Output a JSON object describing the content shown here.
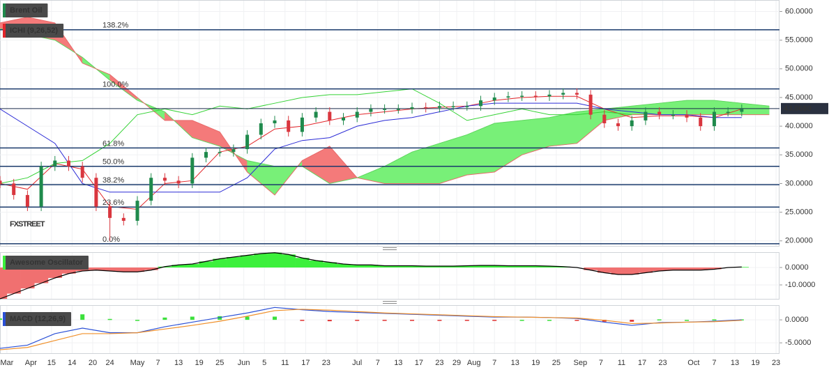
{
  "chart_data": [
    {
      "type": "candlestick",
      "title": "Brent Oil",
      "subtitle": "ICHI (9,26,52)",
      "watermark": "FXSTREET",
      "xlim": [
        0,
        227
      ],
      "xticks": [
        {
          "value": 2,
          "label": "Mar"
        },
        {
          "value": 9,
          "label": "Apr"
        },
        15,
        {
          "value": 21,
          "label": "14"
        },
        {
          "value": 27,
          "label": "20"
        },
        {
          "value": 32,
          "label": "24"
        },
        {
          "value": 40,
          "label": "May"
        },
        {
          "value": 46,
          "label": "7"
        },
        {
          "value": 52,
          "label": "13"
        },
        {
          "value": 58,
          "label": "19"
        },
        {
          "value": 64,
          "label": "25"
        },
        {
          "value": 71,
          "label": "Jun"
        },
        {
          "value": 77,
          "label": "5"
        },
        {
          "value": 83,
          "label": "11"
        },
        {
          "value": 89,
          "label": "17"
        },
        {
          "value": 95,
          "label": "23"
        },
        {
          "value": 104,
          "label": "Jul"
        },
        {
          "value": 110,
          "label": "7"
        },
        {
          "value": 116,
          "label": "13"
        },
        {
          "value": 122,
          "label": "17"
        },
        {
          "value": 128,
          "label": "23"
        },
        {
          "value": 133,
          "label": "29"
        },
        {
          "value": 138,
          "label": "Aug"
        },
        {
          "value": 144,
          "label": "7"
        },
        {
          "value": 150,
          "label": "13"
        },
        {
          "value": 156,
          "label": "19"
        },
        {
          "value": 162,
          "label": "25"
        },
        {
          "value": 169,
          "label": "Sep"
        },
        {
          "value": 175,
          "label": "7"
        },
        {
          "value": 181,
          "label": "11"
        },
        {
          "value": 187,
          "label": "17"
        },
        {
          "value": 193,
          "label": "23"
        },
        {
          "value": 202,
          "label": "Oct"
        },
        {
          "value": 208,
          "label": "7"
        },
        {
          "value": 214,
          "label": "13"
        },
        {
          "value": 220,
          "label": "19"
        },
        {
          "value": 226,
          "label": "23"
        }
      ],
      "ylim": [
        19,
        62
      ],
      "yticks": [
        {
          "value": 20,
          "label": "20.0000"
        },
        {
          "value": 25,
          "label": "25.0000"
        },
        {
          "value": 30,
          "label": "30.0000"
        },
        {
          "value": 35,
          "label": "35.0000"
        },
        {
          "value": 40,
          "label": "40.0000"
        },
        {
          "value": 45,
          "label": "45.0000"
        },
        {
          "value": 50,
          "label": "50.0000"
        },
        {
          "value": 55,
          "label": "55.0000"
        },
        {
          "value": 60,
          "label": "60.0000"
        }
      ],
      "up_color": "#1f8a4c",
      "down_color": "#d9363e",
      "x": [
        0,
        4,
        8,
        12,
        16,
        20,
        24,
        28,
        32,
        36,
        40,
        44,
        48,
        52,
        56,
        60,
        64,
        68,
        72,
        76,
        80,
        84,
        88,
        92,
        96,
        100,
        104,
        108,
        112,
        116,
        120,
        124,
        128,
        132,
        136,
        140,
        144,
        148,
        152,
        156,
        160,
        164,
        168,
        172,
        176,
        180,
        184,
        188,
        192,
        196,
        200,
        204,
        208,
        212,
        216
      ],
      "open": [
        30.5,
        30,
        28,
        26,
        33,
        34,
        33,
        31,
        26,
        24,
        23.5,
        27,
        31,
        30.5,
        30,
        34.5,
        35.5,
        35.5,
        36,
        38.5,
        40.5,
        41,
        39,
        41.5,
        42.5,
        41,
        41.5,
        42.5,
        43,
        43,
        43,
        43.3,
        43.2,
        43.5,
        43.5,
        43.5,
        44.5,
        45,
        45.2,
        45.3,
        45.2,
        45.5,
        45.8,
        45.5,
        42,
        40.5,
        40,
        41,
        42.5,
        42,
        42,
        41.5,
        40,
        42.5,
        42.5
      ],
      "high": [
        31.3,
        30.8,
        28.8,
        33.8,
        34.8,
        34.8,
        33.8,
        31.8,
        26.8,
        24.8,
        27.8,
        31.8,
        31.8,
        31.3,
        35.3,
        36.3,
        36.3,
        36.8,
        39.3,
        41.3,
        41.8,
        41.8,
        42.3,
        43.3,
        43.3,
        42.3,
        43.3,
        43.8,
        43.8,
        43.8,
        44.1,
        44.1,
        44.3,
        44.3,
        44.3,
        45.3,
        45.8,
        46,
        46.1,
        46.1,
        46.3,
        46.6,
        46.6,
        46.3,
        42.8,
        41.3,
        41.8,
        43.3,
        43.3,
        42.8,
        42.8,
        42.3,
        43.3,
        43.3,
        43.8
      ],
      "low": [
        29.2,
        27.2,
        25.2,
        25.2,
        32.2,
        32.2,
        30.2,
        25.2,
        20,
        22.7,
        22.7,
        26.2,
        29.7,
        29.2,
        29.2,
        33.7,
        34.7,
        34.7,
        35.2,
        37.7,
        39.7,
        38.2,
        38.2,
        40.7,
        40.2,
        40.2,
        40.7,
        41.7,
        42.2,
        42.2,
        42.2,
        42.4,
        42.4,
        42.7,
        42.7,
        42.7,
        43.7,
        44.2,
        44.4,
        44.4,
        44.4,
        44.7,
        44.7,
        41.2,
        39.7,
        39.2,
        39.2,
        40.2,
        41.2,
        41.2,
        40.7,
        39.2,
        39.2,
        41.7,
        41.7
      ],
      "close": [
        30,
        28,
        26,
        33,
        34,
        33,
        31,
        26,
        24,
        23.5,
        27,
        31,
        30.5,
        30,
        34.5,
        35.5,
        35.5,
        36,
        38.5,
        40.5,
        41,
        39,
        41.5,
        42.5,
        41,
        41.5,
        42.5,
        43,
        43,
        43,
        43.3,
        43.2,
        43.5,
        43.5,
        43.5,
        44.5,
        45,
        45.2,
        45.3,
        45.2,
        45.5,
        45.8,
        45.5,
        42,
        40.5,
        40,
        41,
        42.5,
        42,
        42,
        41.5,
        40,
        42.5,
        42.5,
        43
      ],
      "ichimoku": {
        "x": [
          0,
          8,
          16,
          24,
          32,
          40,
          48,
          56,
          64,
          72,
          80,
          88,
          96,
          104,
          112,
          120,
          128,
          136,
          144,
          152,
          160,
          168,
          176,
          184,
          192,
          200,
          208,
          216,
          224
        ],
        "cloud_colors": [
          "#78f078",
          "#f47a7a"
        ],
        "span_a": {
          "color": "#5fd65f",
          "values": [
            57,
            56,
            55,
            52,
            48,
            44.5,
            42.5,
            38,
            36.5,
            34,
            33,
            33,
            30,
            31,
            33,
            35.5,
            37,
            38.5,
            40.5,
            41,
            41.5,
            42.5,
            43,
            43.5,
            44,
            44.5,
            44.5,
            44,
            43.5
          ]
        },
        "span_b": {
          "color": "#e86a6a",
          "values": [
            58,
            59,
            58,
            51,
            49,
            45,
            41,
            41,
            39,
            32,
            28,
            34,
            36.5,
            31,
            30,
            30,
            30,
            31.5,
            32,
            35,
            36.5,
            37,
            41,
            42,
            42,
            42,
            42,
            42,
            42
          ]
        },
        "lines": [
          {
            "color": "#e3262b",
            "values": [
              30,
              29,
              33.5,
              32.5,
              26,
              25.5,
              30,
              30.5,
              35.5,
              36.5,
              39.5,
              40,
              41,
              42,
              42.5,
              43,
              43.3,
              43.5,
              44.5,
              45,
              45.2,
              45.2,
              43,
              41.5,
              41.8,
              41.8,
              41.5,
              43,
              null
            ]
          },
          {
            "color": "#2b2bd6",
            "values": [
              43,
              40,
              37,
              30,
              28.5,
              28.5,
              28.5,
              28.5,
              28.5,
              31,
              36,
              37.5,
              38,
              40,
              41,
              41.5,
              42.5,
              43.5,
              44,
              44,
              44,
              44,
              43,
              42.5,
              42,
              42,
              41.5,
              41.5,
              null
            ]
          },
          {
            "color": "#35d235",
            "values": [
              30,
              31,
              33.5,
              34,
              37,
              42,
              43,
              42,
              43.5,
              43,
              44,
              45,
              45.5,
              45.5,
              46,
              46.5,
              44,
              41,
              42,
              43,
              42,
              42,
              42.5,
              42,
              null,
              null,
              null,
              null,
              null
            ]
          }
        ]
      },
      "levels": {
        "color": "#1a3a6b",
        "items": [
          {
            "value": 56.8,
            "label": "138.2%"
          },
          {
            "value": 46.5,
            "label": "100.0%"
          },
          {
            "value": 36.2,
            "label": "61.8%"
          },
          {
            "value": 33.0,
            "label": "50.0%"
          },
          {
            "value": 29.8,
            "label": "38.2%"
          },
          {
            "value": 25.9,
            "label": "23.6%"
          },
          {
            "value": 19.5,
            "label": "0.0%"
          }
        ]
      },
      "last_price": {
        "value": 43.068,
        "label": "43.0680"
      }
    },
    {
      "type": "bar",
      "title": "Awesome Oscillator",
      "xlim": [
        0,
        227
      ],
      "ylim": [
        -18.4,
        8.8
      ],
      "yticks": [
        {
          "value": 0,
          "label": "0.0000"
        },
        {
          "value": -10,
          "label": "-10.0000"
        }
      ],
      "up_color": "#3cf03c",
      "down_color": "#f07070",
      "line_color": "#000000",
      "x": [
        0,
        4,
        8,
        12,
        16,
        20,
        24,
        28,
        32,
        36,
        40,
        44,
        48,
        52,
        56,
        60,
        64,
        68,
        72,
        76,
        80,
        84,
        88,
        92,
        96,
        100,
        104,
        108,
        112,
        116,
        120,
        124,
        128,
        132,
        136,
        140,
        144,
        148,
        152,
        156,
        160,
        164,
        168,
        172,
        176,
        180,
        184,
        188,
        192,
        196,
        200,
        204,
        208,
        212,
        216
      ],
      "values": [
        -18,
        -15,
        -12,
        -9,
        -6,
        -3.5,
        -2,
        -1.5,
        -2,
        -2.5,
        -2.5,
        -1.5,
        0.5,
        1.5,
        2,
        3.5,
        5,
        6,
        7,
        8,
        8.5,
        7.5,
        5.5,
        4,
        3,
        2,
        1.5,
        1.5,
        1,
        1,
        1,
        0.8,
        0.8,
        0.8,
        1,
        1.2,
        1.2,
        1,
        1,
        1,
        0.8,
        0.5,
        0,
        -1.5,
        -3,
        -4,
        -4,
        -3,
        -2,
        -1.5,
        -1.5,
        -1.5,
        -1,
        0,
        0.3
      ]
    },
    {
      "type": "line",
      "title": "MACD (12,26,9)",
      "xlim": [
        0,
        227
      ],
      "ylim": [
        -7.4,
        3.2
      ],
      "yticks": [
        {
          "value": 0,
          "label": "0.0000"
        },
        {
          "value": -5,
          "label": "-5.0000"
        }
      ],
      "up_color": "#3ce03c",
      "down_color": "#e03030",
      "x": [
        0,
        8,
        16,
        24,
        32,
        40,
        48,
        56,
        64,
        72,
        80,
        88,
        96,
        104,
        112,
        120,
        128,
        136,
        144,
        152,
        160,
        168,
        176,
        184,
        192,
        200,
        208,
        216
      ],
      "histogram": [
        0.3,
        0.5,
        1.5,
        1.2,
        0.2,
        0,
        0.5,
        0.7,
        0.8,
        0.7,
        0.7,
        -0.1,
        -0.3,
        -0.2,
        -0.1,
        -0.1,
        -0.1,
        -0.1,
        -0.1,
        0,
        0,
        -0.1,
        -0.4,
        -0.4,
        0.1,
        0,
        0.1,
        0.1
      ],
      "series": [
        {
          "color": "#2b50d6",
          "values": [
            -6.2,
            -5.5,
            -3,
            -1.8,
            -2.8,
            -2.8,
            -1.5,
            -0.5,
            0.5,
            1.5,
            2.7,
            2.2,
            1.8,
            1.6,
            1.4,
            1.2,
            1,
            0.8,
            0.6,
            0.6,
            0.5,
            0.3,
            -0.5,
            -1.2,
            -0.6,
            -0.5,
            -0.3,
            0
          ]
        },
        {
          "color": "#f0902a",
          "values": [
            -6.5,
            -6,
            -4.5,
            -3,
            -3,
            -2.8,
            -2,
            -1.2,
            -0.3,
            0.8,
            2,
            2.3,
            2.1,
            1.8,
            1.5,
            1.3,
            1.1,
            0.9,
            0.7,
            0.6,
            0.5,
            0.4,
            -0.1,
            -0.8,
            -0.7,
            -0.5,
            -0.4,
            -0.1
          ]
        }
      ]
    }
  ]
}
